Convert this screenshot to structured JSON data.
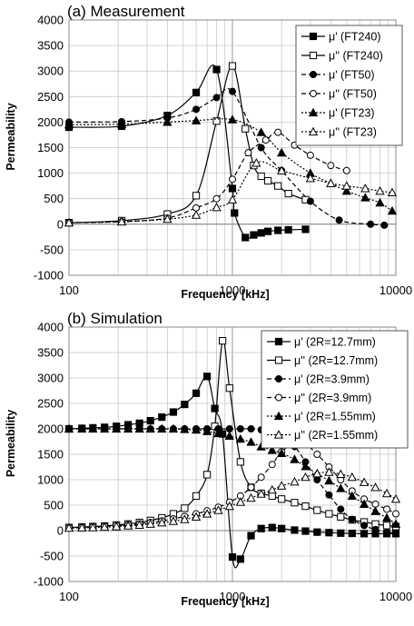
{
  "chart_data": [
    {
      "type": "line",
      "title": "(a) Measurement",
      "xlabel": "Frequency [kHz]",
      "ylabel": "Permeability",
      "xscale": "log",
      "xlim": [
        100,
        10000
      ],
      "ylim": [
        -1000,
        4000
      ],
      "x_ticks": [
        "100",
        "1000",
        "10000"
      ],
      "y_ticks": [
        "-1000",
        "-500",
        "0",
        "500",
        "1000",
        "1500",
        "2000",
        "2500",
        "3000",
        "3500",
        "4000"
      ],
      "grid": true,
      "legend_position": "top-right",
      "series": [
        {
          "name": "μ' (FT240)",
          "color": "#000000",
          "dash": "solid",
          "marker": "square-filled",
          "x": [
            100,
            210,
            400,
            600,
            800,
            1000,
            1030,
            1200,
            1350,
            1500,
            1650,
            1900,
            2200,
            2800
          ],
          "y": [
            1900,
            1920,
            2130,
            2580,
            3030,
            700,
            220,
            -260,
            -210,
            -170,
            -140,
            -120,
            -110,
            -100
          ]
        },
        {
          "name": "μ'' (FT240)",
          "color": "#000000",
          "dash": "solid",
          "marker": "square-open",
          "x": [
            100,
            210,
            400,
            600,
            800,
            1000,
            1200,
            1350,
            1500,
            1650,
            1900,
            2200,
            2800
          ],
          "y": [
            30,
            70,
            200,
            560,
            2020,
            3100,
            1870,
            1150,
            940,
            850,
            750,
            600,
            480
          ]
        },
        {
          "name": "μ' (FT50)",
          "color": "#000000",
          "dash": "dash",
          "marker": "circle-filled",
          "x": [
            100,
            210,
            400,
            600,
            800,
            1000,
            1500,
            2000,
            3000,
            4500,
            7000,
            8500
          ],
          "y": [
            2000,
            2010,
            2080,
            2250,
            2480,
            2600,
            1500,
            1050,
            450,
            80,
            0,
            -20
          ]
        },
        {
          "name": "μ'' (FT50)",
          "color": "#000000",
          "dash": "dash",
          "marker": "circle-open",
          "x": [
            100,
            210,
            400,
            600,
            800,
            1000,
            1250,
            1600,
            1900,
            2400,
            3000,
            4000,
            5000
          ],
          "y": [
            30,
            50,
            120,
            320,
            500,
            880,
            1400,
            1650,
            1800,
            1550,
            1350,
            1150,
            1050
          ]
        },
        {
          "name": "μ' (FT23)",
          "color": "#000000",
          "dash": "dot",
          "marker": "triangle-filled",
          "x": [
            100,
            210,
            400,
            600,
            1000,
            1500,
            2000,
            3000,
            4000,
            5000,
            6500,
            8000,
            9500
          ],
          "y": [
            1950,
            1960,
            2000,
            2030,
            2050,
            1800,
            1400,
            1000,
            800,
            650,
            520,
            420,
            260
          ]
        },
        {
          "name": "μ'' (FT23)",
          "color": "#000000",
          "dash": "dot",
          "marker": "triangle-open",
          "x": [
            100,
            210,
            400,
            600,
            800,
            1000,
            1400,
            2000,
            3000,
            4000,
            5000,
            6500,
            8000,
            9500
          ],
          "y": [
            30,
            50,
            100,
            180,
            330,
            480,
            1200,
            1050,
            900,
            800,
            750,
            700,
            650,
            620
          ]
        }
      ]
    },
    {
      "type": "line",
      "title": "(b) Simulation",
      "xlabel": "Frequency [kHz]",
      "ylabel": "Permeability",
      "xscale": "log",
      "xlim": [
        100,
        10000
      ],
      "ylim": [
        -1000,
        4000
      ],
      "x_ticks": [
        "100",
        "1000",
        "10000"
      ],
      "y_ticks": [
        "-1000",
        "-500",
        "0",
        "500",
        "1000",
        "1500",
        "2000",
        "2500",
        "3000",
        "3500",
        "4000"
      ],
      "grid": true,
      "legend_position": "top-right",
      "series": [
        {
          "name": "μ' (2R=12.7mm)",
          "color": "#000000",
          "dash": "solid",
          "marker": "square-filled",
          "x": [
            100,
            120,
            140,
            165,
            195,
            230,
            270,
            315,
            370,
            435,
            510,
            600,
            700,
            780,
            870,
            1000,
            1120,
            1300,
            1500,
            1750,
            2000,
            2400,
            2800,
            3300,
            3900,
            4600,
            5400,
            6400,
            7500,
            8800,
            10000
          ],
          "y": [
            2000,
            2010,
            2020,
            2030,
            2050,
            2080,
            2110,
            2160,
            2230,
            2330,
            2480,
            2700,
            3030,
            2400,
            1900,
            -520,
            -560,
            -100,
            40,
            60,
            40,
            10,
            -10,
            -30,
            -40,
            -50,
            -55,
            -60,
            -60,
            -60,
            -60
          ]
        },
        {
          "name": "μ'' (2R=12.7mm)",
          "color": "#000000",
          "dash": "solid",
          "marker": "square-open",
          "x": [
            100,
            120,
            140,
            165,
            195,
            230,
            270,
            315,
            370,
            435,
            510,
            600,
            700,
            780,
            870,
            960,
            1120,
            1300,
            1500,
            1750,
            2000,
            2400,
            2800,
            3300,
            3900,
            4600,
            5400,
            6400,
            7500,
            8800,
            10000
          ],
          "y": [
            60,
            70,
            80,
            90,
            110,
            130,
            160,
            200,
            250,
            330,
            440,
            680,
            1100,
            2050,
            3730,
            2800,
            1350,
            850,
            730,
            680,
            620,
            550,
            480,
            400,
            330,
            270,
            210,
            170,
            130,
            100,
            80
          ]
        },
        {
          "name": "μ' (2R=3.9mm)",
          "color": "#000000",
          "dash": "dash",
          "marker": "circle-filled",
          "x": [
            100,
            120,
            140,
            165,
            195,
            230,
            270,
            315,
            370,
            435,
            510,
            600,
            700,
            820,
            960,
            1120,
            1300,
            1500,
            1750,
            2000,
            2400,
            2800,
            3300,
            3900,
            4600,
            5400,
            6400,
            7500,
            8800,
            10000
          ],
          "y": [
            2000,
            2000,
            2000,
            2000,
            2000,
            2000,
            2000,
            2000,
            2000,
            2000,
            2000,
            2000,
            2000,
            2000,
            2000,
            2000,
            2000,
            1980,
            1900,
            1800,
            1650,
            1350,
            1000,
            700,
            420,
            220,
            100,
            20,
            -30,
            -50
          ]
        },
        {
          "name": "μ'' (2R=3.9mm)",
          "color": "#000000",
          "dash": "dash",
          "marker": "circle-open",
          "x": [
            100,
            120,
            140,
            165,
            195,
            230,
            270,
            315,
            370,
            435,
            510,
            600,
            700,
            820,
            960,
            1120,
            1300,
            1500,
            1750,
            2000,
            2400,
            2800,
            3300,
            3900,
            4600,
            5400,
            6400,
            7500,
            8800,
            10000
          ],
          "y": [
            60,
            65,
            75,
            85,
            100,
            115,
            135,
            160,
            190,
            230,
            280,
            330,
            390,
            460,
            560,
            680,
            850,
            1050,
            1300,
            1550,
            1720,
            1700,
            1500,
            1250,
            1000,
            780,
            620,
            520,
            420,
            330
          ]
        },
        {
          "name": "μ' (2R=1.55mm)",
          "color": "#000000",
          "dash": "dot",
          "marker": "triangle-filled",
          "x": [
            100,
            120,
            140,
            165,
            195,
            230,
            270,
            315,
            370,
            435,
            510,
            600,
            700,
            820,
            960,
            1120,
            1300,
            1500,
            1750,
            2000,
            2400,
            2800,
            3300,
            3900,
            4600,
            5400,
            6400,
            7500,
            8800,
            10000
          ],
          "y": [
            2000,
            2000,
            2000,
            2000,
            2000,
            2000,
            2000,
            2000,
            2000,
            2000,
            1990,
            1980,
            1950,
            1910,
            1860,
            1800,
            1740,
            1650,
            1580,
            1520,
            1400,
            1260,
            1120,
            980,
            830,
            680,
            520,
            380,
            250,
            130
          ]
        },
        {
          "name": "μ'' (2R=1.55mm)",
          "color": "#000000",
          "dash": "dot",
          "marker": "triangle-open",
          "x": [
            100,
            120,
            140,
            165,
            195,
            230,
            270,
            315,
            370,
            435,
            510,
            600,
            700,
            820,
            960,
            1120,
            1300,
            1500,
            1750,
            2000,
            2400,
            2800,
            3300,
            3900,
            4600,
            5400,
            6400,
            7500,
            8800,
            10000
          ],
          "y": [
            50,
            55,
            60,
            70,
            80,
            95,
            110,
            130,
            155,
            185,
            220,
            270,
            330,
            400,
            480,
            560,
            640,
            720,
            800,
            880,
            960,
            1050,
            1120,
            1150,
            1110,
            1050,
            950,
            850,
            730,
            620
          ]
        }
      ]
    }
  ]
}
